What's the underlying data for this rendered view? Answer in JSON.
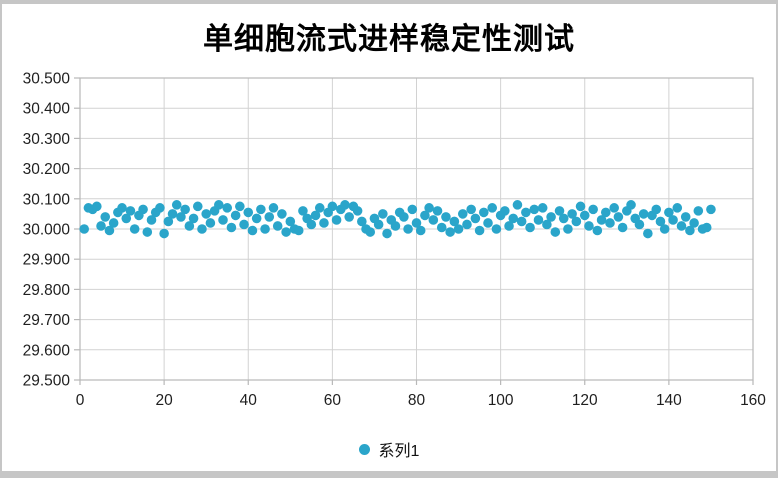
{
  "window": {
    "frame_color": "#c6c6c6",
    "background": "#ffffff"
  },
  "chart_data": {
    "type": "scatter",
    "title": "单细胞流式进样稳定性测试",
    "xlabel": "",
    "ylabel": "",
    "xlim": [
      0,
      160
    ],
    "ylim": [
      29.5,
      30.5
    ],
    "x_tick_labels": [
      "0",
      "20",
      "40",
      "60",
      "80",
      "100",
      "120",
      "140",
      "160"
    ],
    "y_tick_labels": [
      "30.500",
      "30.400",
      "30.300",
      "30.200",
      "30.100",
      "30.000",
      "29.900",
      "29.800",
      "29.700",
      "29.600",
      "29.500"
    ],
    "grid": true,
    "gridline_color": "#d2d2d2",
    "axis_color": "#b8b8b8",
    "legend_position": "bottom",
    "marker_radius_px": 4.8,
    "series": [
      {
        "name": "系列1",
        "color": "#2aa5ca",
        "points": [
          [
            1,
            30.0
          ],
          [
            2,
            30.07
          ],
          [
            3,
            30.065
          ],
          [
            4,
            30.075
          ],
          [
            5,
            30.01
          ],
          [
            6,
            30.04
          ],
          [
            7,
            29.995
          ],
          [
            8,
            30.02
          ],
          [
            9,
            30.055
          ],
          [
            10,
            30.07
          ],
          [
            11,
            30.035
          ],
          [
            12,
            30.06
          ],
          [
            13,
            30.0
          ],
          [
            14,
            30.045
          ],
          [
            15,
            30.065
          ],
          [
            16,
            29.99
          ],
          [
            17,
            30.03
          ],
          [
            18,
            30.055
          ],
          [
            19,
            30.07
          ],
          [
            20,
            29.985
          ],
          [
            21,
            30.025
          ],
          [
            22,
            30.05
          ],
          [
            23,
            30.08
          ],
          [
            24,
            30.04
          ],
          [
            25,
            30.065
          ],
          [
            26,
            30.01
          ],
          [
            27,
            30.035
          ],
          [
            28,
            30.075
          ],
          [
            29,
            30.0
          ],
          [
            30,
            30.05
          ],
          [
            31,
            30.02
          ],
          [
            32,
            30.06
          ],
          [
            33,
            30.08
          ],
          [
            34,
            30.03
          ],
          [
            35,
            30.07
          ],
          [
            36,
            30.005
          ],
          [
            37,
            30.045
          ],
          [
            38,
            30.075
          ],
          [
            39,
            30.015
          ],
          [
            40,
            30.055
          ],
          [
            41,
            29.995
          ],
          [
            42,
            30.035
          ],
          [
            43,
            30.065
          ],
          [
            44,
            30.0
          ],
          [
            45,
            30.04
          ],
          [
            46,
            30.07
          ],
          [
            47,
            30.01
          ],
          [
            48,
            30.05
          ],
          [
            49,
            29.99
          ],
          [
            50,
            30.025
          ],
          [
            51,
            30.0
          ],
          [
            52,
            29.995
          ],
          [
            53,
            30.06
          ],
          [
            54,
            30.035
          ],
          [
            55,
            30.015
          ],
          [
            56,
            30.045
          ],
          [
            57,
            30.07
          ],
          [
            58,
            30.02
          ],
          [
            59,
            30.055
          ],
          [
            60,
            30.075
          ],
          [
            61,
            30.03
          ],
          [
            62,
            30.065
          ],
          [
            63,
            30.08
          ],
          [
            64,
            30.04
          ],
          [
            65,
            30.075
          ],
          [
            66,
            30.06
          ],
          [
            67,
            30.025
          ],
          [
            68,
            30.0
          ],
          [
            69,
            29.99
          ],
          [
            70,
            30.035
          ],
          [
            71,
            30.015
          ],
          [
            72,
            30.05
          ],
          [
            73,
            29.985
          ],
          [
            74,
            30.03
          ],
          [
            75,
            30.01
          ],
          [
            76,
            30.055
          ],
          [
            77,
            30.04
          ],
          [
            78,
            30.0
          ],
          [
            79,
            30.065
          ],
          [
            80,
            30.02
          ],
          [
            81,
            29.995
          ],
          [
            82,
            30.045
          ],
          [
            83,
            30.07
          ],
          [
            84,
            30.03
          ],
          [
            85,
            30.06
          ],
          [
            86,
            30.005
          ],
          [
            87,
            30.04
          ],
          [
            88,
            29.99
          ],
          [
            89,
            30.025
          ],
          [
            90,
            30.0
          ],
          [
            91,
            30.05
          ],
          [
            92,
            30.015
          ],
          [
            93,
            30.065
          ],
          [
            94,
            30.035
          ],
          [
            95,
            29.995
          ],
          [
            96,
            30.055
          ],
          [
            97,
            30.02
          ],
          [
            98,
            30.07
          ],
          [
            99,
            30.0
          ],
          [
            100,
            30.045
          ],
          [
            101,
            30.06
          ],
          [
            102,
            30.01
          ],
          [
            103,
            30.035
          ],
          [
            104,
            30.08
          ],
          [
            105,
            30.025
          ],
          [
            106,
            30.055
          ],
          [
            107,
            30.005
          ],
          [
            108,
            30.065
          ],
          [
            109,
            30.03
          ],
          [
            110,
            30.07
          ],
          [
            111,
            30.015
          ],
          [
            112,
            30.04
          ],
          [
            113,
            29.99
          ],
          [
            114,
            30.06
          ],
          [
            115,
            30.035
          ],
          [
            116,
            30.0
          ],
          [
            117,
            30.05
          ],
          [
            118,
            30.025
          ],
          [
            119,
            30.075
          ],
          [
            120,
            30.045
          ],
          [
            121,
            30.01
          ],
          [
            122,
            30.065
          ],
          [
            123,
            29.995
          ],
          [
            124,
            30.03
          ],
          [
            125,
            30.055
          ],
          [
            126,
            30.02
          ],
          [
            127,
            30.07
          ],
          [
            128,
            30.04
          ],
          [
            129,
            30.005
          ],
          [
            130,
            30.06
          ],
          [
            131,
            30.08
          ],
          [
            132,
            30.035
          ],
          [
            133,
            30.015
          ],
          [
            134,
            30.05
          ],
          [
            135,
            29.985
          ],
          [
            136,
            30.045
          ],
          [
            137,
            30.065
          ],
          [
            138,
            30.025
          ],
          [
            139,
            30.0
          ],
          [
            140,
            30.055
          ],
          [
            141,
            30.03
          ],
          [
            142,
            30.07
          ],
          [
            143,
            30.01
          ],
          [
            144,
            30.04
          ],
          [
            145,
            29.995
          ],
          [
            146,
            30.02
          ],
          [
            147,
            30.06
          ],
          [
            148,
            30.0
          ],
          [
            149,
            30.005
          ],
          [
            150,
            30.065
          ]
        ]
      }
    ]
  },
  "legend": {
    "items": [
      {
        "label": "系列1",
        "color": "#2aa5ca"
      }
    ]
  }
}
